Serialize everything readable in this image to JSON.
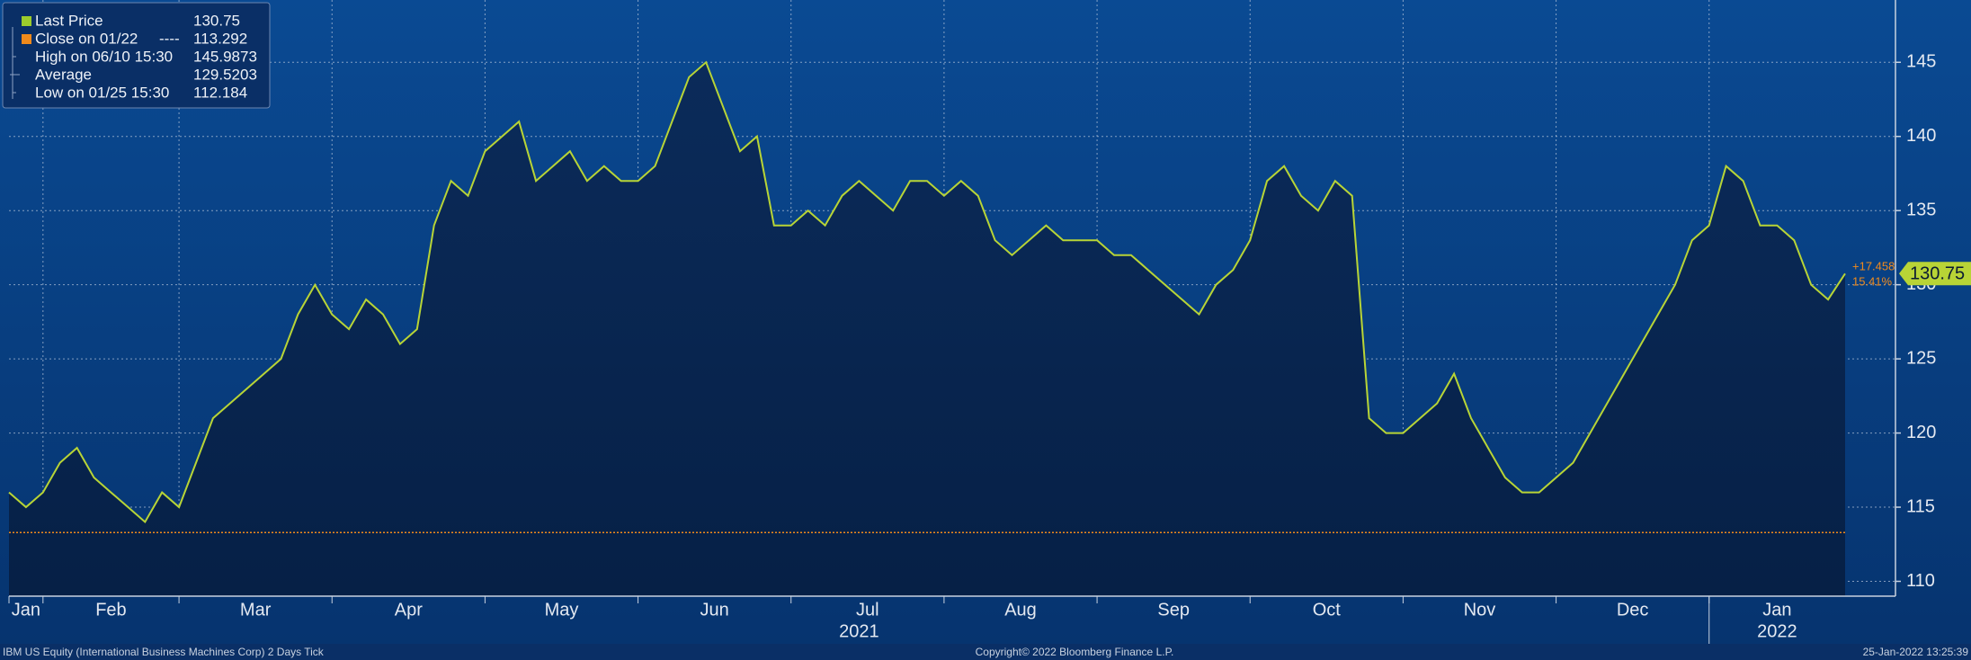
{
  "chart_data": {
    "type": "area",
    "color": "#b8d436",
    "categories": [
      "Jan",
      null,
      "Feb",
      null,
      null,
      null,
      null,
      null,
      null,
      null,
      "Mar",
      null,
      null,
      null,
      null,
      null,
      null,
      null,
      null,
      "Apr",
      null,
      null,
      null,
      null,
      null,
      null,
      null,
      null,
      "May",
      null,
      null,
      null,
      null,
      null,
      null,
      null,
      null,
      "Jun",
      null,
      null,
      null,
      null,
      null,
      null,
      null,
      null,
      "Jul",
      null,
      null,
      null,
      null,
      null,
      null,
      null,
      null,
      "Aug",
      null,
      null,
      null,
      null,
      null,
      null,
      null,
      null,
      "Sep",
      null,
      null,
      null,
      null,
      null,
      null,
      null,
      null,
      "Oct",
      null,
      null,
      null,
      null,
      null,
      null,
      null,
      null,
      "Nov",
      null,
      null,
      null,
      null,
      null,
      null,
      null,
      null,
      "Dec",
      null,
      null,
      null,
      null,
      null,
      null,
      null,
      null,
      "Jan",
      null,
      null,
      null,
      null,
      null,
      null,
      null,
      null
    ],
    "values": [
      116,
      115,
      116,
      118,
      119,
      117,
      116,
      115,
      114,
      116,
      115,
      118,
      121,
      122,
      123,
      124,
      125,
      128,
      130,
      128,
      127,
      129,
      128,
      126,
      127,
      134,
      137,
      136,
      139,
      140,
      141,
      137,
      138,
      139,
      137,
      138,
      137,
      137,
      138,
      141,
      144,
      145,
      142,
      139,
      140,
      134,
      134,
      135,
      134,
      136,
      137,
      136,
      135,
      137,
      137,
      136,
      137,
      136,
      133,
      132,
      133,
      134,
      133,
      133,
      133,
      132,
      132,
      131,
      130,
      129,
      128,
      130,
      131,
      133,
      137,
      138,
      136,
      135,
      137,
      136,
      121,
      120,
      120,
      121,
      122,
      124,
      121,
      119,
      117,
      116,
      116,
      117,
      118,
      120,
      122,
      124,
      126,
      128,
      130,
      133,
      134,
      138,
      137,
      134,
      134,
      133,
      130,
      129,
      130.75
    ],
    "years": [
      "2021",
      "2022"
    ],
    "ylim": [
      109,
      149.2
    ],
    "yticks": [
      110,
      115,
      120,
      125,
      130,
      135,
      140,
      145
    ],
    "grid": true,
    "legend": [
      {
        "label": "Last Price",
        "value": 130.75,
        "color": "#9ccc2c"
      },
      {
        "label": "Close on 01/22",
        "line": "----",
        "value": 113.292,
        "color": "#f08a1c"
      },
      {
        "label": "High on 06/10 15:30",
        "value": 145.9873
      },
      {
        "label": "Average",
        "value": 129.5203
      },
      {
        "label": "Low on 01/25 15:30",
        "value": 112.184
      }
    ],
    "change": {
      "value": 17.458,
      "label": "+17.458"
    },
    "change_pct": {
      "value": 15.41,
      "label": "15.41%"
    },
    "footer": {
      "left": "IBM US Equity (International Business Machines Corp) 2 Days  Tick",
      "center": "Copyright© 2022 Bloomberg Finance L.P.",
      "right": "25-Jan-2022 13:25:39"
    }
  }
}
